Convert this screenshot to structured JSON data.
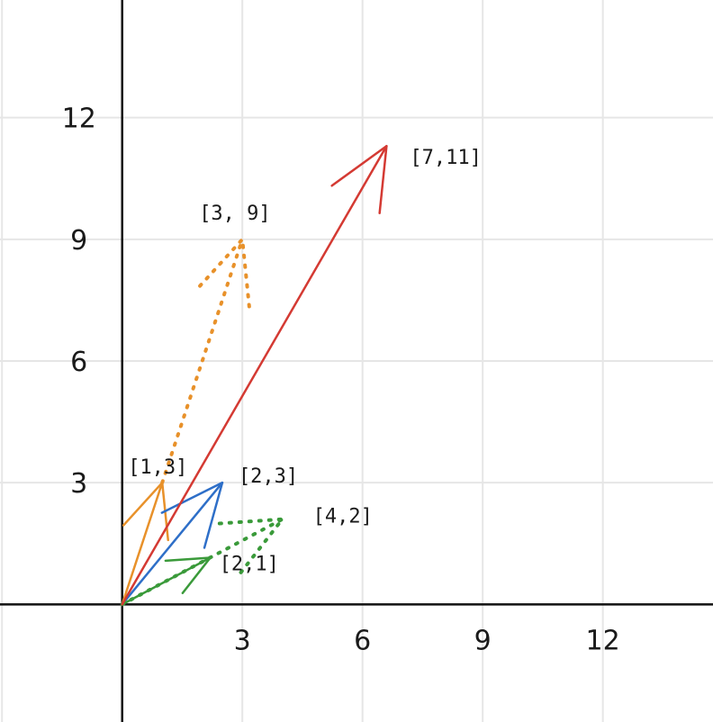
{
  "chart_data": {
    "type": "vector-plot",
    "xlim": [
      -3.05,
      14.75
    ],
    "ylim": [
      -2.9,
      14.9
    ],
    "grid": true,
    "x_ticks": [
      {
        "value": 3,
        "label": "3"
      },
      {
        "value": 6,
        "label": "6"
      },
      {
        "value": 9,
        "label": "9"
      },
      {
        "value": 12,
        "label": "12"
      }
    ],
    "y_ticks": [
      {
        "value": 3,
        "label": "3"
      },
      {
        "value": 6,
        "label": "6"
      },
      {
        "value": 9,
        "label": "9"
      },
      {
        "value": 12,
        "label": "12"
      }
    ],
    "vectors": [
      {
        "id": "v13",
        "label": "[1,3]",
        "from": [
          0,
          0
        ],
        "to": [
          1,
          3
        ],
        "color": "#e8912a",
        "style": "solid"
      },
      {
        "id": "v39",
        "label": "[3, 9]",
        "from": [
          1,
          3
        ],
        "to": [
          3,
          9
        ],
        "color": "#e8912a",
        "style": "dotted"
      },
      {
        "id": "v23",
        "label": "[2,3]",
        "from": [
          0,
          0
        ],
        "to": [
          2.5,
          3
        ],
        "color": "#2e6fc8",
        "style": "solid"
      },
      {
        "id": "v21",
        "label": "[2,1]",
        "from": [
          0,
          0
        ],
        "to": [
          2.2,
          1.15
        ],
        "color": "#3a9a3a",
        "style": "solid"
      },
      {
        "id": "v42",
        "label": "[4,2]",
        "from": [
          0,
          0
        ],
        "to": [
          4,
          2.1
        ],
        "color": "#3a9a3a",
        "style": "dotted"
      },
      {
        "id": "v711",
        "label": "[7,11]",
        "from": [
          0,
          0
        ],
        "to": [
          6.6,
          11.3
        ],
        "color": "#d43a33",
        "style": "solid"
      }
    ]
  }
}
